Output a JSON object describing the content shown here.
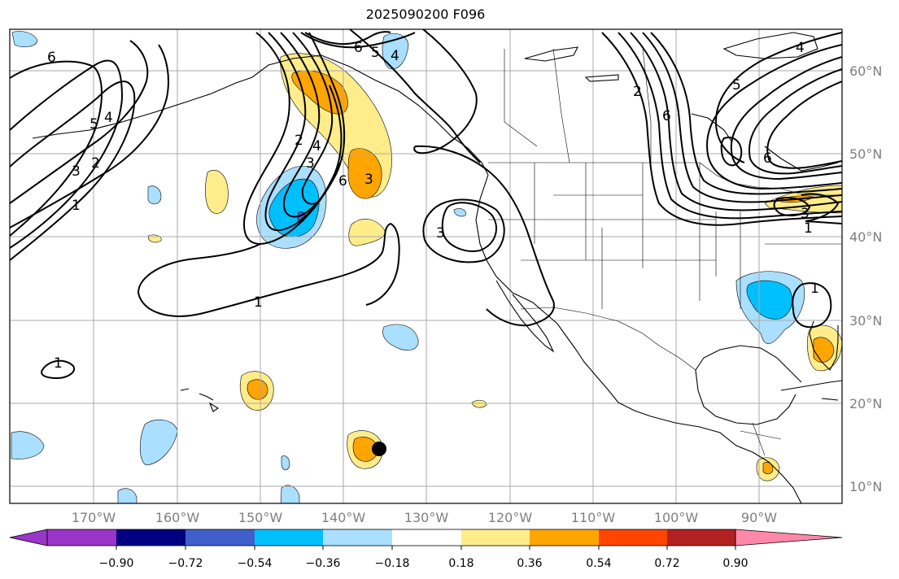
{
  "title": "2025090200 F096",
  "lon_labels": [
    "170°W",
    "160°W",
    "150°W",
    "140°W",
    "130°W",
    "120°W",
    "110°W",
    "100°W",
    "90°W"
  ],
  "lat_labels": [
    "60°N",
    "50°N",
    "40°N",
    "30°N",
    "20°N",
    "10°N"
  ],
  "colorbar": {
    "ticks": [
      "−0.90",
      "−0.72",
      "−0.54",
      "−0.36",
      "−0.18",
      "0.18",
      "0.36",
      "0.54",
      "0.72",
      "0.90"
    ],
    "colors": [
      "#9a35c9",
      "#000080",
      "#3f5fcc",
      "#00bfff",
      "#aadfff",
      "#ffffff",
      "#ffec8b",
      "#ffa500",
      "#ff4500",
      "#b22222",
      "#ff88aa"
    ]
  },
  "contour_labels": {
    "c1": "6",
    "c2": "5",
    "c3": "4",
    "c4": "3",
    "c5": "2",
    "c6": "1",
    "c7": "6",
    "c8": "5",
    "c9": "4",
    "c10": "2",
    "c11": "4",
    "c12": "3",
    "c13": "6",
    "c14": "3",
    "c15": "3",
    "c16": "1",
    "c17": "1",
    "c18": "2",
    "c19": "6",
    "c20": "5",
    "c21": "4",
    "c22": "6",
    "c23": "3",
    "c24": "1",
    "c25": "1"
  }
}
